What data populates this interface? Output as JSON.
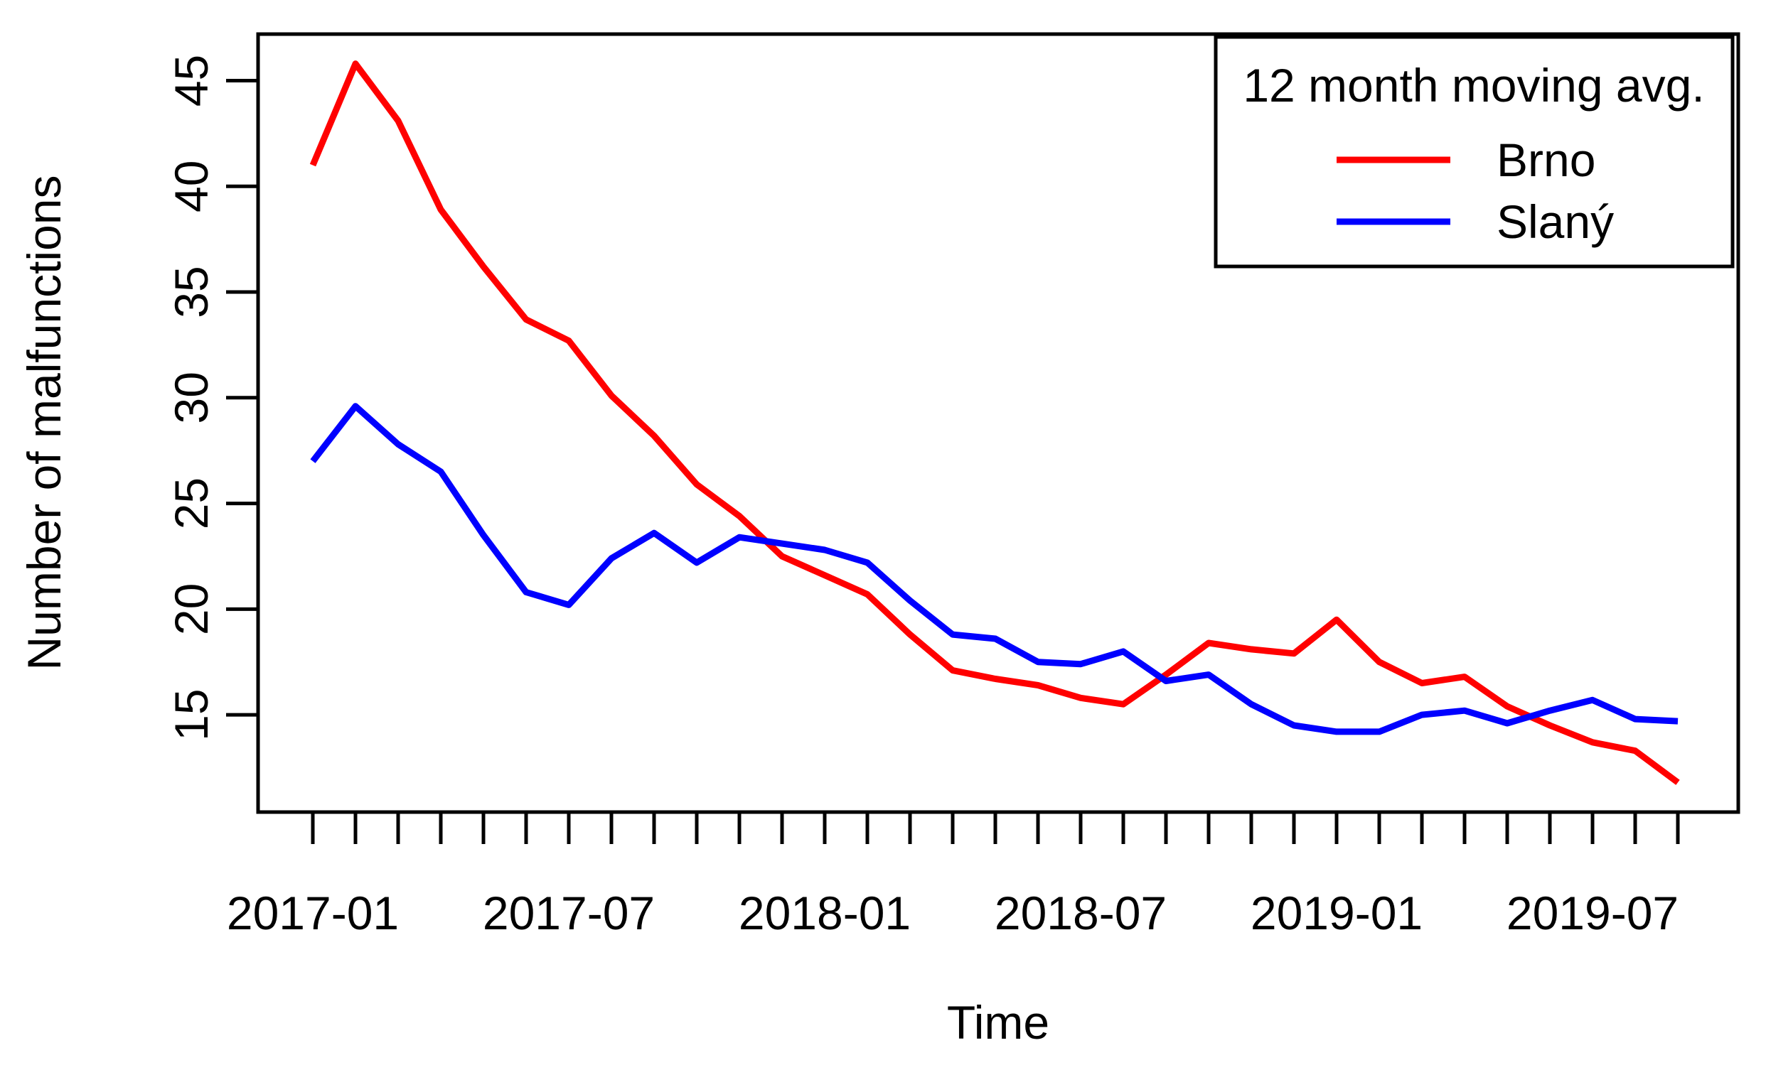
{
  "chart_data": {
    "type": "line",
    "title": "",
    "xlabel": "Time",
    "ylabel": "Number of malfunctions",
    "x_tick_labels": [
      "2017-01",
      "2017-07",
      "2018-01",
      "2018-07",
      "2019-01",
      "2019-07"
    ],
    "y_ticks": [
      15,
      20,
      25,
      30,
      35,
      40,
      45
    ],
    "ylim": [
      10.4,
      47.2
    ],
    "grid": "off",
    "legend": {
      "title": "12 month moving avg.",
      "position": "top-right"
    },
    "months": [
      "2017-01",
      "2017-02",
      "2017-03",
      "2017-04",
      "2017-05",
      "2017-06",
      "2017-07",
      "2017-08",
      "2017-09",
      "2017-10",
      "2017-11",
      "2017-12",
      "2018-01",
      "2018-02",
      "2018-03",
      "2018-04",
      "2018-05",
      "2018-06",
      "2018-07",
      "2018-08",
      "2018-09",
      "2018-10",
      "2018-11",
      "2018-12",
      "2019-01",
      "2019-02",
      "2019-03",
      "2019-04",
      "2019-05",
      "2019-06",
      "2019-07",
      "2019-08",
      "2019-09"
    ],
    "series": [
      {
        "name": "Brno",
        "color": "#ff0000",
        "values": [
          41.0,
          45.8,
          43.1,
          38.9,
          36.2,
          33.7,
          32.7,
          30.1,
          28.2,
          25.9,
          24.4,
          22.5,
          21.6,
          20.7,
          18.8,
          17.1,
          16.7,
          16.4,
          15.8,
          15.5,
          16.9,
          18.4,
          18.1,
          17.9,
          19.5,
          17.5,
          16.5,
          16.8,
          15.4,
          14.5,
          13.7,
          13.3,
          11.8
        ]
      },
      {
        "name": "Slaný",
        "color": "#0000ff",
        "values": [
          27.0,
          29.6,
          27.8,
          26.5,
          23.5,
          20.8,
          20.2,
          22.4,
          23.6,
          22.2,
          23.4,
          23.1,
          22.8,
          22.2,
          20.4,
          18.8,
          18.6,
          17.5,
          17.4,
          18.0,
          16.6,
          16.9,
          15.5,
          14.5,
          14.2,
          14.2,
          15.0,
          15.2,
          14.6,
          15.2,
          15.7,
          14.8,
          14.7
        ]
      }
    ]
  }
}
